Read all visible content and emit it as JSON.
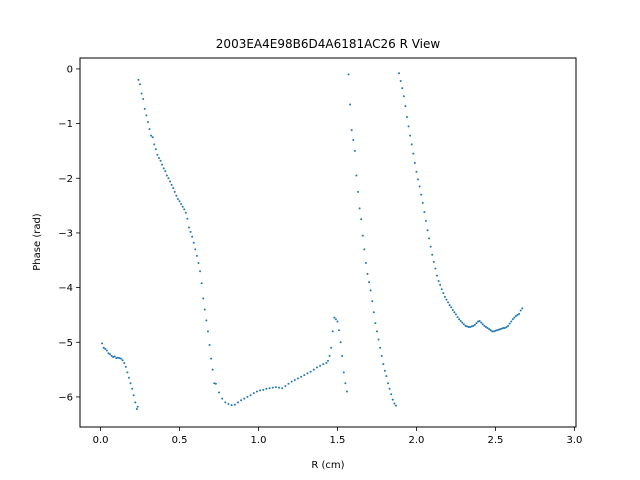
{
  "chart_data": {
    "type": "scatter",
    "title": "2003EA4E98B6D4A6181AC26 R View",
    "xlabel": "R (cm)",
    "ylabel": "Phase (rad)",
    "xlim": [
      -0.13,
      3.01
    ],
    "ylim": [
      -6.55,
      0.2
    ],
    "xticks": [
      0.0,
      0.5,
      1.0,
      1.5,
      2.0,
      2.5,
      3.0
    ],
    "xtick_labels": [
      "0.0",
      "0.5",
      "1.0",
      "1.5",
      "2.0",
      "2.5",
      "3.0"
    ],
    "yticks": [
      0,
      -1,
      -2,
      -3,
      -4,
      -5,
      -6
    ],
    "ytick_labels": [
      "0",
      "−1",
      "−2",
      "−3",
      "−4",
      "−5",
      "−6"
    ],
    "grid": false,
    "marker_color": "#1f77b4",
    "series": [
      {
        "points": [
          [
            0.01,
            -5.02
          ],
          [
            0.02,
            -5.1
          ],
          [
            0.03,
            -5.12
          ],
          [
            0.04,
            -5.15
          ],
          [
            0.05,
            -5.2
          ],
          [
            0.06,
            -5.22
          ],
          [
            0.07,
            -5.25
          ],
          [
            0.08,
            -5.27
          ],
          [
            0.09,
            -5.26
          ],
          [
            0.1,
            -5.29
          ],
          [
            0.11,
            -5.28
          ],
          [
            0.12,
            -5.29
          ],
          [
            0.13,
            -5.3
          ],
          [
            0.14,
            -5.33
          ],
          [
            0.15,
            -5.38
          ],
          [
            0.16,
            -5.45
          ],
          [
            0.17,
            -5.55
          ],
          [
            0.18,
            -5.65
          ],
          [
            0.19,
            -5.75
          ],
          [
            0.2,
            -5.85
          ],
          [
            0.21,
            -5.97
          ],
          [
            0.22,
            -6.1
          ],
          [
            0.23,
            -6.22
          ],
          [
            0.235,
            -6.18
          ],
          [
            0.24,
            -0.2
          ],
          [
            0.25,
            -0.28
          ],
          [
            0.26,
            -0.45
          ],
          [
            0.27,
            -0.55
          ],
          [
            0.28,
            -0.73
          ],
          [
            0.29,
            -0.85
          ],
          [
            0.3,
            -0.97
          ],
          [
            0.31,
            -1.1
          ],
          [
            0.32,
            -1.22
          ],
          [
            0.33,
            -1.25
          ],
          [
            0.34,
            -1.38
          ],
          [
            0.35,
            -1.47
          ],
          [
            0.36,
            -1.57
          ],
          [
            0.37,
            -1.63
          ],
          [
            0.38,
            -1.68
          ],
          [
            0.39,
            -1.75
          ],
          [
            0.4,
            -1.82
          ],
          [
            0.41,
            -1.87
          ],
          [
            0.42,
            -1.95
          ],
          [
            0.43,
            -2.0
          ],
          [
            0.44,
            -2.06
          ],
          [
            0.45,
            -2.12
          ],
          [
            0.46,
            -2.18
          ],
          [
            0.47,
            -2.25
          ],
          [
            0.48,
            -2.32
          ],
          [
            0.49,
            -2.38
          ],
          [
            0.5,
            -2.42
          ],
          [
            0.51,
            -2.47
          ],
          [
            0.52,
            -2.52
          ],
          [
            0.53,
            -2.57
          ],
          [
            0.54,
            -2.63
          ],
          [
            0.55,
            -2.74
          ],
          [
            0.56,
            -2.9
          ],
          [
            0.57,
            -2.98
          ],
          [
            0.58,
            -3.07
          ],
          [
            0.59,
            -3.18
          ],
          [
            0.6,
            -3.3
          ],
          [
            0.61,
            -3.42
          ],
          [
            0.62,
            -3.55
          ],
          [
            0.63,
            -3.7
          ],
          [
            0.64,
            -3.92
          ],
          [
            0.65,
            -4.2
          ],
          [
            0.66,
            -4.4
          ],
          [
            0.67,
            -4.6
          ],
          [
            0.68,
            -4.8
          ],
          [
            0.69,
            -5.05
          ],
          [
            0.7,
            -5.3
          ],
          [
            0.71,
            -5.5
          ],
          [
            0.72,
            -5.75
          ],
          [
            0.73,
            -5.76
          ],
          [
            0.75,
            -5.92
          ],
          [
            0.77,
            -6.03
          ],
          [
            0.79,
            -6.1
          ],
          [
            0.81,
            -6.13
          ],
          [
            0.83,
            -6.15
          ],
          [
            0.85,
            -6.14
          ],
          [
            0.87,
            -6.1
          ],
          [
            0.89,
            -6.06
          ],
          [
            0.91,
            -6.03
          ],
          [
            0.93,
            -6.0
          ],
          [
            0.95,
            -5.97
          ],
          [
            0.97,
            -5.93
          ],
          [
            0.99,
            -5.9
          ],
          [
            1.01,
            -5.88
          ],
          [
            1.03,
            -5.87
          ],
          [
            1.05,
            -5.85
          ],
          [
            1.07,
            -5.84
          ],
          [
            1.09,
            -5.83
          ],
          [
            1.11,
            -5.82
          ],
          [
            1.13,
            -5.83
          ],
          [
            1.15,
            -5.84
          ],
          [
            1.17,
            -5.8
          ],
          [
            1.19,
            -5.76
          ],
          [
            1.21,
            -5.72
          ],
          [
            1.23,
            -5.69
          ],
          [
            1.25,
            -5.66
          ],
          [
            1.27,
            -5.63
          ],
          [
            1.29,
            -5.6
          ],
          [
            1.31,
            -5.57
          ],
          [
            1.33,
            -5.54
          ],
          [
            1.35,
            -5.5
          ],
          [
            1.37,
            -5.46
          ],
          [
            1.39,
            -5.43
          ],
          [
            1.41,
            -5.4
          ],
          [
            1.43,
            -5.38
          ],
          [
            1.44,
            -5.34
          ],
          [
            1.45,
            -5.25
          ],
          [
            1.46,
            -5.1
          ],
          [
            1.47,
            -4.8
          ],
          [
            1.48,
            -4.55
          ],
          [
            1.49,
            -4.58
          ],
          [
            1.5,
            -4.62
          ],
          [
            1.51,
            -4.78
          ],
          [
            1.52,
            -5.0
          ],
          [
            1.53,
            -5.25
          ],
          [
            1.54,
            -5.55
          ],
          [
            1.55,
            -5.75
          ],
          [
            1.56,
            -5.9
          ],
          [
            1.57,
            -0.1
          ],
          [
            1.58,
            -0.65
          ],
          [
            1.59,
            -1.12
          ],
          [
            1.6,
            -1.3
          ],
          [
            1.61,
            -1.5
          ],
          [
            1.62,
            -1.95
          ],
          [
            1.63,
            -2.25
          ],
          [
            1.64,
            -2.55
          ],
          [
            1.65,
            -2.75
          ],
          [
            1.66,
            -3.05
          ],
          [
            1.67,
            -3.3
          ],
          [
            1.68,
            -3.55
          ],
          [
            1.69,
            -3.75
          ],
          [
            1.7,
            -3.9
          ],
          [
            1.71,
            -4.05
          ],
          [
            1.72,
            -4.25
          ],
          [
            1.73,
            -4.45
          ],
          [
            1.74,
            -4.65
          ],
          [
            1.75,
            -4.8
          ],
          [
            1.76,
            -4.95
          ],
          [
            1.77,
            -5.1
          ],
          [
            1.78,
            -5.25
          ],
          [
            1.79,
            -5.4
          ],
          [
            1.8,
            -5.52
          ],
          [
            1.81,
            -5.62
          ],
          [
            1.82,
            -5.75
          ],
          [
            1.83,
            -5.85
          ],
          [
            1.84,
            -5.95
          ],
          [
            1.85,
            -6.05
          ],
          [
            1.86,
            -6.12
          ],
          [
            1.87,
            -6.16
          ],
          [
            1.89,
            -0.08
          ],
          [
            1.9,
            -0.22
          ],
          [
            1.91,
            -0.35
          ],
          [
            1.92,
            -0.5
          ],
          [
            1.93,
            -0.68
          ],
          [
            1.94,
            -0.88
          ],
          [
            1.95,
            -1.05
          ],
          [
            1.96,
            -1.22
          ],
          [
            1.97,
            -1.38
          ],
          [
            1.98,
            -1.55
          ],
          [
            1.99,
            -1.72
          ],
          [
            2.0,
            -1.88
          ],
          [
            2.01,
            -2.02
          ],
          [
            2.02,
            -2.15
          ],
          [
            2.03,
            -2.3
          ],
          [
            2.04,
            -2.45
          ],
          [
            2.05,
            -2.62
          ],
          [
            2.06,
            -2.78
          ],
          [
            2.07,
            -2.95
          ],
          [
            2.08,
            -3.1
          ],
          [
            2.09,
            -3.25
          ],
          [
            2.1,
            -3.4
          ],
          [
            2.11,
            -3.53
          ],
          [
            2.12,
            -3.65
          ],
          [
            2.13,
            -3.78
          ],
          [
            2.14,
            -3.88
          ],
          [
            2.15,
            -3.95
          ],
          [
            2.16,
            -4.03
          ],
          [
            2.17,
            -4.1
          ],
          [
            2.18,
            -4.17
          ],
          [
            2.19,
            -4.22
          ],
          [
            2.2,
            -4.27
          ],
          [
            2.21,
            -4.32
          ],
          [
            2.22,
            -4.36
          ],
          [
            2.23,
            -4.41
          ],
          [
            2.24,
            -4.45
          ],
          [
            2.25,
            -4.49
          ],
          [
            2.26,
            -4.54
          ],
          [
            2.27,
            -4.58
          ],
          [
            2.28,
            -4.61
          ],
          [
            2.29,
            -4.64
          ],
          [
            2.3,
            -4.67
          ],
          [
            2.31,
            -4.7
          ],
          [
            2.32,
            -4.71
          ],
          [
            2.33,
            -4.72
          ],
          [
            2.34,
            -4.72
          ],
          [
            2.35,
            -4.71
          ],
          [
            2.36,
            -4.7
          ],
          [
            2.37,
            -4.68
          ],
          [
            2.38,
            -4.65
          ],
          [
            2.39,
            -4.62
          ],
          [
            2.4,
            -4.61
          ],
          [
            2.41,
            -4.64
          ],
          [
            2.42,
            -4.67
          ],
          [
            2.43,
            -4.7
          ],
          [
            2.44,
            -4.72
          ],
          [
            2.45,
            -4.74
          ],
          [
            2.46,
            -4.76
          ],
          [
            2.47,
            -4.78
          ],
          [
            2.48,
            -4.8
          ],
          [
            2.49,
            -4.8
          ],
          [
            2.5,
            -4.79
          ],
          [
            2.51,
            -4.78
          ],
          [
            2.52,
            -4.77
          ],
          [
            2.53,
            -4.76
          ],
          [
            2.54,
            -4.75
          ],
          [
            2.55,
            -4.74
          ],
          [
            2.56,
            -4.74
          ],
          [
            2.57,
            -4.72
          ],
          [
            2.58,
            -4.7
          ],
          [
            2.59,
            -4.66
          ],
          [
            2.6,
            -4.62
          ],
          [
            2.61,
            -4.58
          ],
          [
            2.62,
            -4.55
          ],
          [
            2.63,
            -4.52
          ],
          [
            2.64,
            -4.5
          ],
          [
            2.65,
            -4.48
          ],
          [
            2.66,
            -4.42
          ],
          [
            2.67,
            -4.38
          ]
        ]
      }
    ]
  }
}
